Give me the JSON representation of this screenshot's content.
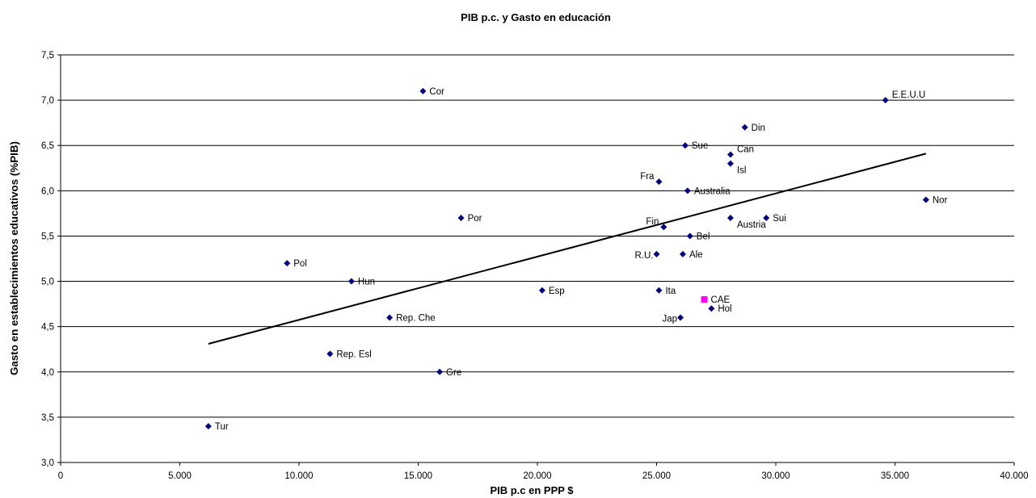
{
  "chart_data": {
    "type": "scatter",
    "title": "PIB p.c. y Gasto en educación",
    "xlabel": "PIB p.c en PPP $",
    "ylabel": "Gasto en establecimientos educativos (%PIB)",
    "xlim": [
      0,
      40000
    ],
    "ylim": [
      3.0,
      7.5
    ],
    "x_ticks": [
      0,
      5000,
      10000,
      15000,
      20000,
      25000,
      30000,
      35000,
      40000
    ],
    "x_tick_labels": [
      "0",
      "5.000",
      "10.000",
      "15.000",
      "20.000",
      "25.000",
      "30.000",
      "35.000",
      "40.000"
    ],
    "y_ticks": [
      3.0,
      3.5,
      4.0,
      4.5,
      5.0,
      5.5,
      6.0,
      6.5,
      7.0,
      7.5
    ],
    "y_tick_labels": [
      "3,0",
      "3,5",
      "4,0",
      "4,5",
      "5,0",
      "5,5",
      "6,0",
      "6,5",
      "7,0",
      "7,5"
    ],
    "grid": "horizontal",
    "colors": {
      "points": "#000080",
      "highlight": "#ff00ff",
      "trendline": "#000000",
      "grid": "#000000"
    },
    "series": [
      {
        "points": [
          {
            "label": "Tur",
            "x": 6200,
            "y": 3.4,
            "label_pos": "right"
          },
          {
            "label": "Pol",
            "x": 9500,
            "y": 5.2,
            "label_pos": "right"
          },
          {
            "label": "Hun",
            "x": 12200,
            "y": 5.0,
            "label_pos": "right"
          },
          {
            "label": "Rep. Esl",
            "x": 11300,
            "y": 4.2,
            "label_pos": "right"
          },
          {
            "label": "Rep. Che",
            "x": 13800,
            "y": 4.6,
            "label_pos": "right"
          },
          {
            "label": "Cor",
            "x": 15200,
            "y": 7.1,
            "label_pos": "right"
          },
          {
            "label": "Gre",
            "x": 15900,
            "y": 4.0,
            "label_pos": "right"
          },
          {
            "label": "Por",
            "x": 16800,
            "y": 5.7,
            "label_pos": "right"
          },
          {
            "label": "Esp",
            "x": 20200,
            "y": 4.9,
            "label_pos": "right"
          },
          {
            "label": "R.U.",
            "x": 25000,
            "y": 5.3,
            "label_pos": "left"
          },
          {
            "label": "Fra",
            "x": 25100,
            "y": 6.1,
            "label_pos": "left-up"
          },
          {
            "label": "Ita",
            "x": 25100,
            "y": 4.9,
            "label_pos": "right"
          },
          {
            "label": "Fin",
            "x": 25300,
            "y": 5.6,
            "label_pos": "left-up"
          },
          {
            "label": "Jap",
            "x": 26000,
            "y": 4.6,
            "label_pos": "left"
          },
          {
            "label": "Ale",
            "x": 26100,
            "y": 5.3,
            "label_pos": "right"
          },
          {
            "label": "Sue",
            "x": 26200,
            "y": 6.5,
            "label_pos": "right"
          },
          {
            "label": "Australia",
            "x": 26300,
            "y": 6.0,
            "label_pos": "right"
          },
          {
            "label": "Bel",
            "x": 26400,
            "y": 5.5,
            "label_pos": "right"
          },
          {
            "label": "Hol",
            "x": 27300,
            "y": 4.7,
            "label_pos": "right"
          },
          {
            "label": "Austria",
            "x": 28100,
            "y": 5.7,
            "label_pos": "right-down"
          },
          {
            "label": "Can",
            "x": 28100,
            "y": 6.4,
            "label_pos": "right-up"
          },
          {
            "label": "Isl",
            "x": 28100,
            "y": 6.3,
            "label_pos": "right-down"
          },
          {
            "label": "Din",
            "x": 28700,
            "y": 6.7,
            "label_pos": "right"
          },
          {
            "label": "Sui",
            "x": 29600,
            "y": 5.7,
            "label_pos": "right"
          },
          {
            "label": "E.E.U.U",
            "x": 34600,
            "y": 7.0,
            "label_pos": "right-up"
          },
          {
            "label": "Nor",
            "x": 36300,
            "y": 5.9,
            "label_pos": "right"
          }
        ]
      },
      {
        "points": [
          {
            "label": "CAE",
            "x": 27000,
            "y": 4.8,
            "label_pos": "right",
            "marker": "square"
          }
        ]
      }
    ],
    "trendline": {
      "type": "linear",
      "x": [
        6200,
        36300
      ],
      "y": [
        4.31,
        6.41
      ]
    }
  }
}
